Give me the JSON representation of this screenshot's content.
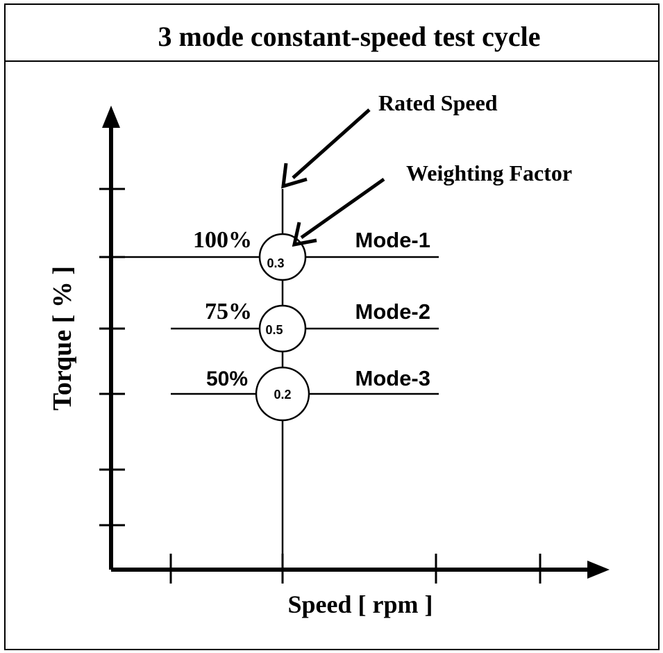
{
  "title": "3 mode constant-speed test cycle",
  "axes": {
    "y_label": "Torque [ % ]",
    "x_label": "Speed [ rpm ]"
  },
  "annotations": {
    "rated_speed": "Rated Speed",
    "weighting_factor": "Weighting Factor"
  },
  "modes": [
    {
      "name": "Mode-1",
      "torque_label": "100%",
      "weight": "0.3"
    },
    {
      "name": "Mode-2",
      "torque_label": "75%",
      "weight": "0.5"
    },
    {
      "name": "Mode-3",
      "torque_label": "50%",
      "weight": "0.2"
    }
  ],
  "colors": {
    "line": "#000000",
    "background": "#ffffff"
  }
}
